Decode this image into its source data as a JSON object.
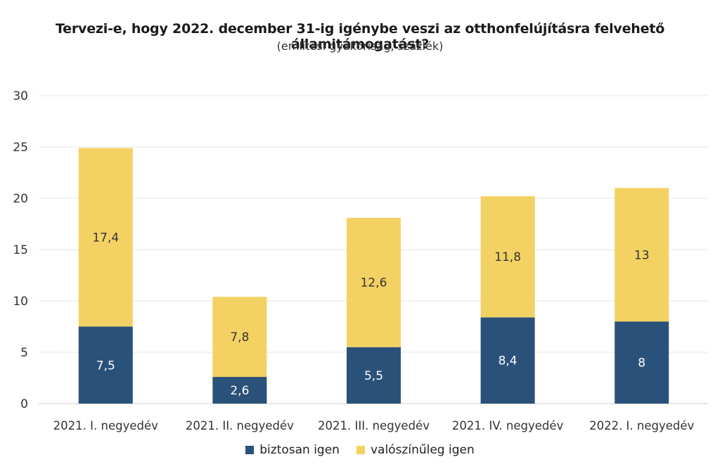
{
  "chart_data": {
    "type": "bar",
    "stacked": true,
    "title": "Tervezi-e, hogy 2022. december 31-ig igénybe veszi az otthonfelújításra felvehető államitámogatást?",
    "subtitle": "(említési gyakoriság, százlék)",
    "categories": [
      "2021. I. negyedév",
      "2021. II. negyedév",
      "2021. III. negyedév",
      "2021. IV. negyedév",
      "2022. I. negyedév"
    ],
    "series": [
      {
        "name": "biztosan igen",
        "color": "#2a5179",
        "values": [
          7.5,
          2.6,
          5.5,
          8.4,
          8
        ],
        "labels": [
          "7,5",
          "2,6",
          "5,5",
          "8,4",
          "8"
        ],
        "label_color": "#ffffff"
      },
      {
        "name": "valószínűleg igen",
        "color": "#f3d263",
        "values": [
          17.4,
          7.8,
          12.6,
          11.8,
          13
        ],
        "labels": [
          "17,4",
          "7,8",
          "12,6",
          "11,8",
          "13"
        ],
        "label_color": "#333333"
      }
    ],
    "ylim": [
      0,
      30
    ],
    "yticks": [
      "0",
      "5",
      "10",
      "15",
      "20",
      "25",
      "30"
    ],
    "grid": true,
    "legend": "bottom"
  }
}
